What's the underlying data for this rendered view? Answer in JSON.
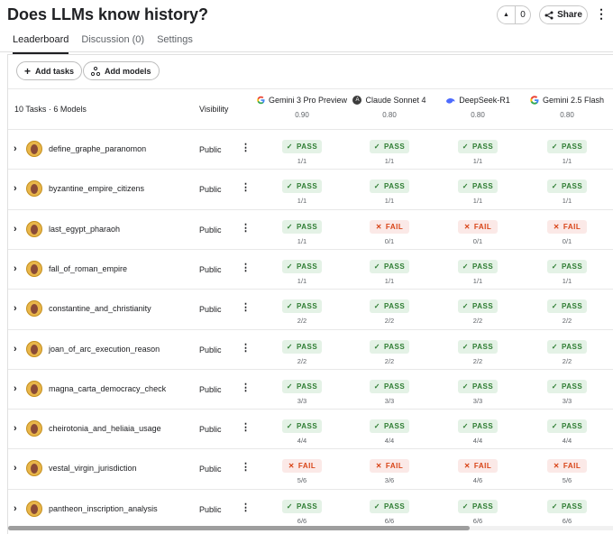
{
  "page": {
    "title": "Does LLMs know history?"
  },
  "vote": {
    "count": "0",
    "up_icon": "triangle-up-icon"
  },
  "share": {
    "label": "Share"
  },
  "tabs": [
    {
      "label": "Leaderboard",
      "active": true
    },
    {
      "label": "Discussion (0)",
      "active": false
    },
    {
      "label": "Settings",
      "active": false
    }
  ],
  "toolbar": {
    "add_tasks": "Add tasks",
    "add_models": "Add models"
  },
  "table": {
    "summary": "10 Tasks · 6 Models",
    "visibility_header": "Visibility",
    "models": [
      {
        "name": "Gemini 3 Pro Preview",
        "score": "0.90",
        "icon": "google-icon"
      },
      {
        "name": "Claude Sonnet 4",
        "score": "0.80",
        "icon": "anthropic-icon"
      },
      {
        "name": "DeepSeek-R1",
        "score": "0.80",
        "icon": "deepseek-icon"
      },
      {
        "name": "Gemini 2.5 Flash",
        "score": "0.80",
        "icon": "google-icon"
      }
    ],
    "rows": [
      {
        "task": "define_graphe_paranomon",
        "visibility": "Public",
        "results": [
          [
            "PASS",
            "1/1"
          ],
          [
            "PASS",
            "1/1"
          ],
          [
            "PASS",
            "1/1"
          ],
          [
            "PASS",
            "1/1"
          ]
        ]
      },
      {
        "task": "byzantine_empire_citizens",
        "visibility": "Public",
        "results": [
          [
            "PASS",
            "1/1"
          ],
          [
            "PASS",
            "1/1"
          ],
          [
            "PASS",
            "1/1"
          ],
          [
            "PASS",
            "1/1"
          ]
        ]
      },
      {
        "task": "last_egypt_pharaoh",
        "visibility": "Public",
        "results": [
          [
            "PASS",
            "1/1"
          ],
          [
            "FAIL",
            "0/1"
          ],
          [
            "FAIL",
            "0/1"
          ],
          [
            "FAIL",
            "0/1"
          ]
        ]
      },
      {
        "task": "fall_of_roman_empire",
        "visibility": "Public",
        "results": [
          [
            "PASS",
            "1/1"
          ],
          [
            "PASS",
            "1/1"
          ],
          [
            "PASS",
            "1/1"
          ],
          [
            "PASS",
            "1/1"
          ]
        ]
      },
      {
        "task": "constantine_and_christianity",
        "visibility": "Public",
        "results": [
          [
            "PASS",
            "2/2"
          ],
          [
            "PASS",
            "2/2"
          ],
          [
            "PASS",
            "2/2"
          ],
          [
            "PASS",
            "2/2"
          ]
        ]
      },
      {
        "task": "joan_of_arc_execution_reason",
        "visibility": "Public",
        "results": [
          [
            "PASS",
            "2/2"
          ],
          [
            "PASS",
            "2/2"
          ],
          [
            "PASS",
            "2/2"
          ],
          [
            "PASS",
            "2/2"
          ]
        ]
      },
      {
        "task": "magna_carta_democracy_check",
        "visibility": "Public",
        "results": [
          [
            "PASS",
            "3/3"
          ],
          [
            "PASS",
            "3/3"
          ],
          [
            "PASS",
            "3/3"
          ],
          [
            "PASS",
            "3/3"
          ]
        ]
      },
      {
        "task": "cheirotonia_and_heliaia_usage",
        "visibility": "Public",
        "results": [
          [
            "PASS",
            "4/4"
          ],
          [
            "PASS",
            "4/4"
          ],
          [
            "PASS",
            "4/4"
          ],
          [
            "PASS",
            "4/4"
          ]
        ]
      },
      {
        "task": "vestal_virgin_jurisdiction",
        "visibility": "Public",
        "results": [
          [
            "FAIL",
            "5/6"
          ],
          [
            "FAIL",
            "3/6"
          ],
          [
            "FAIL",
            "4/6"
          ],
          [
            "FAIL",
            "5/6"
          ]
        ]
      },
      {
        "task": "pantheon_inscription_analysis",
        "visibility": "Public",
        "results": [
          [
            "PASS",
            "6/6"
          ],
          [
            "PASS",
            "6/6"
          ],
          [
            "PASS",
            "6/6"
          ],
          [
            "PASS",
            "6/6"
          ]
        ]
      }
    ]
  },
  "colors": {
    "pass_bg": "#e4f2e6",
    "pass_fg": "#2e7d32",
    "fail_bg": "#fbe9e7",
    "fail_fg": "#d84315"
  }
}
